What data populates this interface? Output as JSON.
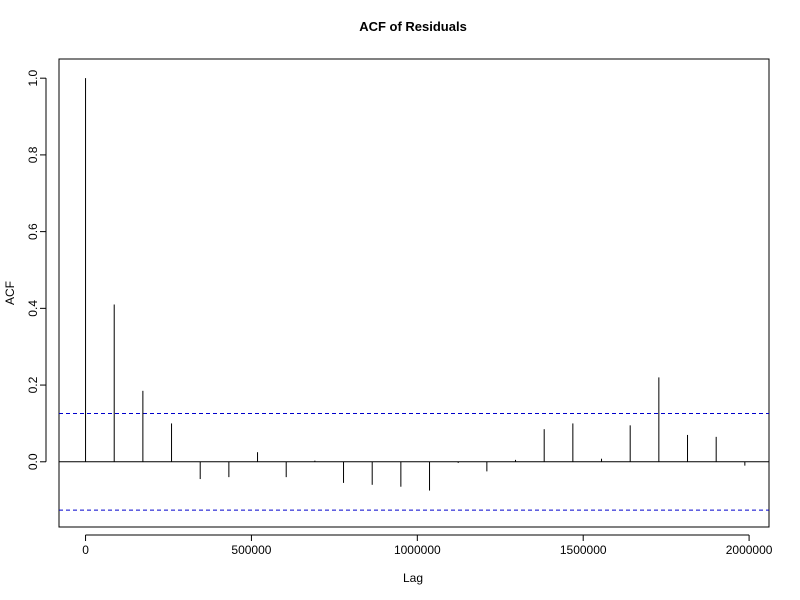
{
  "chart_data": {
    "type": "bar",
    "title": "ACF of Residuals",
    "xlabel": "Lag",
    "ylabel": "ACF",
    "xlim": [
      -80000,
      2060000
    ],
    "ylim": [
      -0.17,
      1.05
    ],
    "x_ticks": [
      0,
      500000,
      1000000,
      1500000,
      2000000
    ],
    "x_tick_labels": [
      "0",
      "500000",
      "1000000",
      "1500000",
      "2000000"
    ],
    "y_ticks": [
      0.0,
      0.2,
      0.4,
      0.6,
      0.8,
      1.0
    ],
    "y_tick_labels": [
      "0.0",
      "0.2",
      "0.4",
      "0.6",
      "0.8",
      "1.0"
    ],
    "confidence_band": 0.126,
    "confidence_color": "#0000cc",
    "grid": false,
    "series": [
      {
        "lags": [
          0,
          86400,
          172800,
          259200,
          345600,
          432000,
          518400,
          604800,
          691200,
          777600,
          864000,
          950400,
          1036800,
          1123200,
          1209600,
          1296000,
          1382400,
          1468800,
          1555200,
          1641600,
          1728000,
          1814400,
          1900800,
          1987200
        ],
        "values": [
          1.0,
          0.41,
          0.185,
          0.1,
          -0.045,
          -0.04,
          0.025,
          -0.04,
          0.003,
          -0.055,
          -0.06,
          -0.065,
          -0.075,
          -0.003,
          -0.025,
          0.005,
          0.085,
          0.1,
          0.008,
          0.095,
          0.22,
          0.07,
          0.065,
          -0.01
        ]
      }
    ]
  }
}
